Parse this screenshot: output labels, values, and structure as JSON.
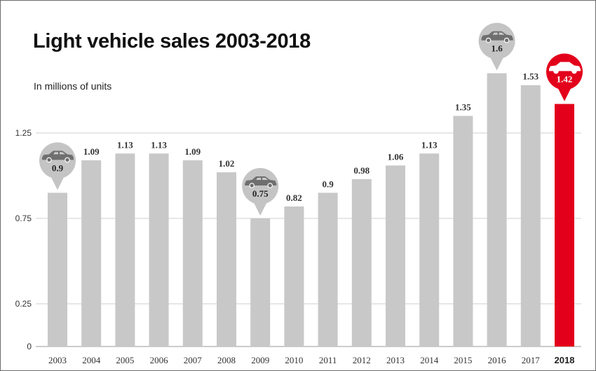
{
  "chart_data": {
    "type": "bar",
    "title": "Light vehicle sales 2003-2018",
    "subtitle": "In millions of units",
    "categories": [
      "2003",
      "2004",
      "2005",
      "2006",
      "2007",
      "2008",
      "2009",
      "2010",
      "2011",
      "2012",
      "2013",
      "2014",
      "2015",
      "2016",
      "2017",
      "2018"
    ],
    "values": [
      0.9,
      1.09,
      1.13,
      1.13,
      1.09,
      1.02,
      0.75,
      0.82,
      0.9,
      0.98,
      1.06,
      1.13,
      1.35,
      1.6,
      1.53,
      1.42
    ],
    "value_labels": [
      "0.9",
      "1.09",
      "1.13",
      "1.13",
      "1.09",
      "1.02",
      "0.75",
      "0.82",
      "0.9",
      "0.98",
      "1.06",
      "1.13",
      "1.35",
      "1.6",
      "1.53",
      "1.42"
    ],
    "y_ticks": [
      0,
      0.25,
      0.75,
      1.25
    ],
    "y_tick_labels": [
      "0",
      "0.25",
      "0.75",
      "1.25"
    ],
    "ylim": [
      0,
      1.25
    ],
    "grid": true,
    "highlight_category": "2018",
    "car_pin_categories": [
      "2003",
      "2009",
      "2016",
      "2018"
    ],
    "colors": {
      "bar": "#c8c8c8",
      "highlight": "#e3001b",
      "pin": "#c4c4c4",
      "car": "#6f6f6f",
      "grid": "#cfcfcf"
    },
    "icons": {
      "pin": "car-icon"
    }
  }
}
